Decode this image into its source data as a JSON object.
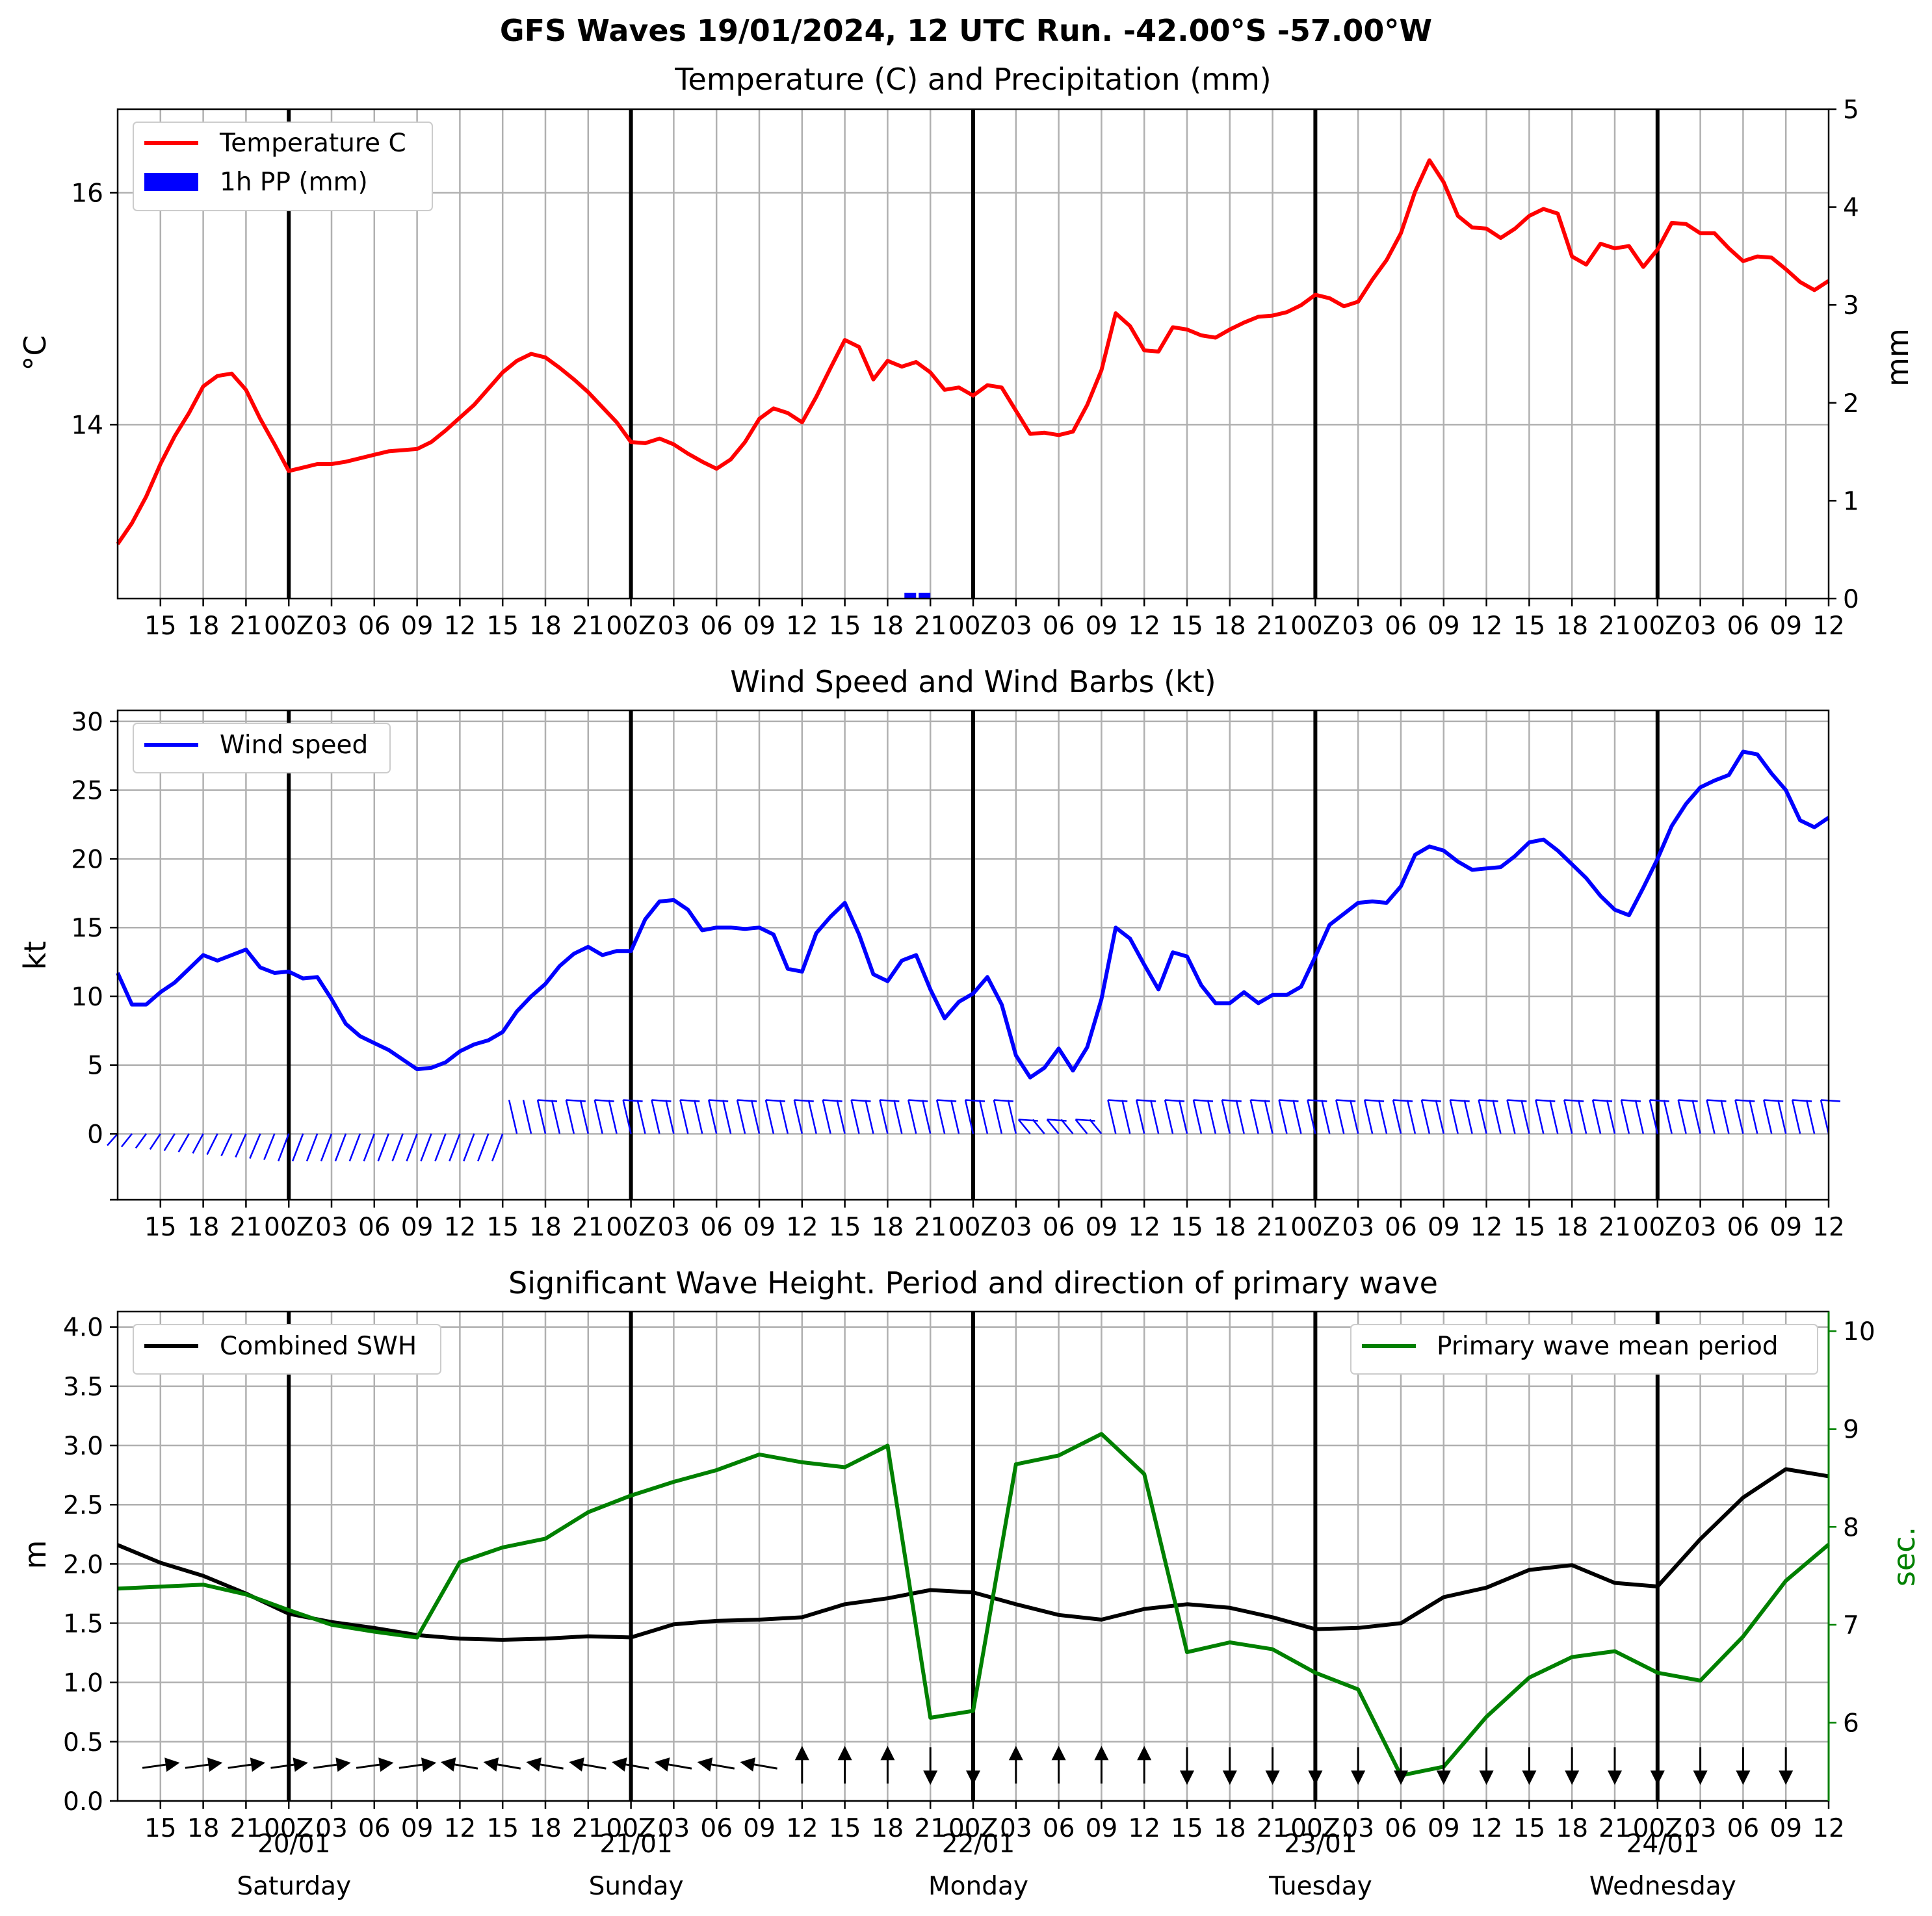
{
  "suptitle": "GFS Waves 19/01/2024, 12 UTC Run. -42.00°S -57.00°W",
  "colors": {
    "temp": "#ff0000",
    "precip": "#0000ff",
    "wind": "#0000ff",
    "swh": "#000000",
    "period": "#008000",
    "grid": "#b0b0b0"
  },
  "x_hour_labels": [
    "15",
    "18",
    "21",
    "00Z",
    "03",
    "06",
    "09",
    "12",
    "15",
    "18",
    "21",
    "00Z",
    "03",
    "06",
    "09",
    "12",
    "15",
    "18",
    "21",
    "00Z",
    "03",
    "06",
    "09",
    "12",
    "15",
    "18",
    "21",
    "00Z",
    "03",
    "06",
    "09",
    "12",
    "15",
    "18",
    "21",
    "00Z",
    "03",
    "06",
    "09",
    "12"
  ],
  "date_labels": [
    {
      "date": "20/01",
      "day": "Saturday"
    },
    {
      "date": "21/01",
      "day": "Sunday"
    },
    {
      "date": "22/01",
      "day": "Monday"
    },
    {
      "date": "23/01",
      "day": "Tuesday"
    },
    {
      "date": "24/01",
      "day": "Wednesday"
    }
  ],
  "chart_data": [
    {
      "type": "line",
      "title": "Temperature (C) and Precipitation (mm)",
      "ylabel": "$^\\circ$C",
      "ylabel_right": "mm",
      "x_unit": "hours after 19/01/2024 12 UTC",
      "xlim": [
        0,
        120
      ],
      "ylim": [
        12.5,
        16.72
      ],
      "yticks": [
        14,
        16
      ],
      "ylim_right": [
        0,
        5
      ],
      "yticks_right": [
        0,
        1,
        2,
        3,
        4,
        5
      ],
      "grid": true,
      "legend": "upper left",
      "series": [
        {
          "name": "Temperature C",
          "color": "#ff0000",
          "x": [
            0,
            1,
            2,
            3,
            4,
            5,
            6,
            7,
            8,
            9,
            10,
            11,
            12,
            13,
            14,
            15,
            16,
            17,
            18,
            19,
            20,
            21,
            22,
            23,
            24,
            25,
            26,
            27,
            28,
            29,
            30,
            31,
            32,
            33,
            34,
            35,
            36,
            37,
            38,
            39,
            40,
            41,
            42,
            43,
            44,
            45,
            46,
            47,
            48,
            49,
            50,
            51,
            52,
            53,
            54,
            55,
            56,
            57,
            58,
            59,
            60,
            61,
            62,
            63,
            64,
            65,
            66,
            67,
            68,
            69,
            70,
            71,
            72,
            73,
            74,
            75,
            76,
            77,
            78,
            79,
            80,
            81,
            82,
            83,
            84,
            85,
            86,
            87,
            88,
            89,
            90,
            91,
            92,
            93,
            94,
            95,
            96,
            97,
            98,
            99,
            100,
            101,
            102,
            103,
            104,
            105,
            106,
            107,
            108,
            109,
            110,
            111,
            112,
            113,
            114,
            115,
            116,
            117,
            118,
            119,
            120
          ],
          "y": [
            12.97,
            13.15,
            13.38,
            13.66,
            13.9,
            14.1,
            14.33,
            14.42,
            14.44,
            14.3,
            14.05,
            13.83,
            13.6,
            13.63,
            13.66,
            13.66,
            13.68,
            13.71,
            13.74,
            13.77,
            13.78,
            13.79,
            13.85,
            13.95,
            14.06,
            14.17,
            14.31,
            14.45,
            14.55,
            14.61,
            14.58,
            14.49,
            14.39,
            14.28,
            14.15,
            14.02,
            13.85,
            13.84,
            13.88,
            13.83,
            13.75,
            13.68,
            13.62,
            13.7,
            13.85,
            14.05,
            14.14,
            14.1,
            14.02,
            14.24,
            14.49,
            14.73,
            14.67,
            14.39,
            14.55,
            14.5,
            14.54,
            14.45,
            14.3,
            14.32,
            14.25,
            14.34,
            14.32,
            14.12,
            13.92,
            13.93,
            13.91,
            13.94,
            14.17,
            14.47,
            14.96,
            14.85,
            14.64,
            14.63,
            14.84,
            14.82,
            14.77,
            14.75,
            14.82,
            14.88,
            14.93,
            14.94,
            14.97,
            15.03,
            15.12,
            15.09,
            15.02,
            15.06,
            15.25,
            15.42,
            15.65,
            16.01,
            16.28,
            16.09,
            15.8,
            15.7,
            15.69,
            15.61,
            15.69,
            15.8,
            15.86,
            15.82,
            15.45,
            15.38,
            15.56,
            15.52,
            15.54,
            15.36,
            15.51,
            15.74,
            15.73,
            15.65,
            15.65,
            15.52,
            15.41,
            15.45,
            15.44,
            15.34,
            15.23,
            15.16,
            15.24
          ]
        },
        {
          "name": "1h PP (mm)",
          "color": "#0000ff",
          "kind": "bar",
          "axis": "right",
          "x": [
            56,
            57
          ],
          "y": [
            0.06,
            0.06
          ]
        }
      ]
    },
    {
      "type": "line",
      "title": "Wind Speed and Wind Barbs (kt)",
      "ylabel": "kt",
      "xlim": [
        0,
        120
      ],
      "ylim": [
        -4.8,
        30.8
      ],
      "yticks": [
        0,
        5,
        10,
        15,
        20,
        25,
        30
      ],
      "grid": true,
      "legend": "upper left",
      "series": [
        {
          "name": "Wind speed",
          "color": "#0000ff",
          "x": [
            0,
            1,
            2,
            3,
            4,
            5,
            6,
            7,
            8,
            9,
            10,
            11,
            12,
            13,
            14,
            15,
            16,
            17,
            18,
            19,
            20,
            21,
            22,
            23,
            24,
            25,
            26,
            27,
            28,
            29,
            30,
            31,
            32,
            33,
            34,
            35,
            36,
            37,
            38,
            39,
            40,
            41,
            42,
            43,
            44,
            45,
            46,
            47,
            48,
            49,
            50,
            51,
            52,
            53,
            54,
            55,
            56,
            57,
            58,
            59,
            60,
            61,
            62,
            63,
            64,
            65,
            66,
            67,
            68,
            69,
            70,
            71,
            72,
            73,
            74,
            75,
            76,
            77,
            78,
            79,
            80,
            81,
            82,
            83,
            84,
            85,
            86,
            87,
            88,
            89,
            90,
            91,
            92,
            93,
            94,
            95,
            96,
            97,
            98,
            99,
            100,
            101,
            102,
            103,
            104,
            105,
            106,
            107,
            108,
            109,
            110,
            111,
            112,
            113,
            114,
            115,
            116,
            117,
            118,
            119,
            120
          ],
          "y": [
            11.7,
            9.4,
            9.4,
            10.3,
            11.0,
            12.0,
            13.0,
            12.6,
            13.0,
            13.4,
            12.1,
            11.7,
            11.8,
            11.3,
            11.4,
            9.8,
            8.0,
            7.1,
            6.6,
            6.1,
            5.4,
            4.7,
            4.8,
            5.2,
            6.0,
            6.5,
            6.8,
            7.4,
            8.9,
            10.0,
            10.9,
            12.2,
            13.1,
            13.6,
            13.0,
            13.3,
            13.3,
            15.6,
            16.9,
            17.0,
            16.3,
            14.8,
            15.0,
            15.0,
            14.9,
            15.0,
            14.5,
            12.0,
            11.8,
            14.6,
            15.8,
            16.8,
            14.5,
            11.6,
            11.1,
            12.6,
            13.0,
            10.5,
            8.4,
            9.6,
            10.2,
            11.4,
            9.4,
            5.7,
            4.1,
            4.8,
            6.2,
            4.6,
            6.3,
            9.8,
            15.0,
            14.2,
            12.3,
            10.5,
            13.2,
            12.9,
            10.8,
            9.5,
            9.5,
            10.3,
            9.5,
            10.1,
            10.1,
            10.7,
            12.9,
            15.2,
            16.0,
            16.8,
            16.9,
            16.8,
            18.0,
            20.3,
            20.9,
            20.6,
            19.8,
            19.2,
            19.3,
            19.4,
            20.2,
            21.2,
            21.4,
            20.6,
            19.6,
            18.6,
            17.3,
            16.3,
            15.9,
            17.9,
            20.0,
            22.4,
            24.0,
            25.2,
            25.7,
            26.1,
            27.8,
            27.6,
            26.2,
            25.0,
            22.8,
            22.3,
            23.0
          ]
        }
      ]
    },
    {
      "type": "line",
      "title": "Significant Wave Height. Period and direction of primary wave",
      "ylabel": "m",
      "ylabel_right": "sec.",
      "xlim": [
        0,
        120
      ],
      "ylim": [
        0,
        4.13
      ],
      "yticks": [
        0.0,
        0.5,
        1.0,
        1.5,
        2.0,
        2.5,
        3.0,
        3.5,
        4.0
      ],
      "ylim_right": [
        5.2,
        10.2
      ],
      "yticks_right": [
        6,
        7,
        8,
        9,
        10
      ],
      "grid": true,
      "series": [
        {
          "name": "Combined SWH",
          "color": "#000000",
          "legend": "upper left",
          "x": [
            0,
            3,
            6,
            9,
            12,
            15,
            18,
            21,
            24,
            27,
            30,
            33,
            36,
            39,
            42,
            45,
            48,
            51,
            54,
            57,
            60,
            63,
            66,
            69,
            72,
            75,
            78,
            81,
            84,
            87,
            90,
            93,
            96,
            99,
            102,
            105,
            108,
            111,
            114,
            117,
            120
          ],
          "y": [
            2.16,
            2.01,
            1.9,
            1.75,
            1.58,
            1.51,
            1.46,
            1.4,
            1.37,
            1.36,
            1.37,
            1.39,
            1.38,
            1.49,
            1.52,
            1.53,
            1.55,
            1.66,
            1.71,
            1.78,
            1.76,
            1.66,
            1.57,
            1.53,
            1.62,
            1.66,
            1.63,
            1.55,
            1.45,
            1.46,
            1.5,
            1.72,
            1.8,
            1.95,
            1.99,
            1.84,
            1.81,
            2.21,
            2.56,
            2.8,
            2.74
          ]
        },
        {
          "name": "Primary wave mean period",
          "color": "#008000",
          "axis": "right",
          "legend": "upper right",
          "x": [
            0,
            3,
            6,
            9,
            12,
            15,
            18,
            21,
            24,
            27,
            30,
            33,
            36,
            39,
            42,
            45,
            48,
            51,
            54,
            57,
            60,
            63,
            66,
            69,
            72,
            75,
            78,
            81,
            84,
            87,
            90,
            93,
            96,
            99,
            102,
            105,
            108,
            111,
            114,
            117,
            120
          ],
          "y": [
            7.37,
            7.39,
            7.41,
            7.31,
            7.15,
            7.0,
            6.93,
            6.87,
            7.64,
            7.79,
            7.88,
            8.15,
            8.32,
            8.46,
            8.58,
            8.74,
            8.66,
            8.61,
            8.83,
            6.05,
            6.12,
            8.64,
            8.73,
            8.95,
            8.54,
            6.72,
            6.82,
            6.75,
            6.51,
            6.34,
            5.46,
            5.55,
            6.06,
            6.46,
            6.67,
            6.73,
            6.51,
            6.43,
            6.88,
            7.45,
            7.82
          ]
        }
      ]
    }
  ]
}
